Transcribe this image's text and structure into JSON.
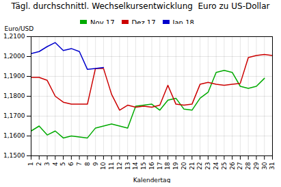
{
  "chart_data": {
    "type": "line",
    "title": "Tägl. durchschnittl. Wechselkursentwicklung  Euro zu US-Dollar",
    "xlabel": "Kalendertag",
    "ylabel": "Euro/USD",
    "x": [
      1,
      2,
      3,
      4,
      5,
      6,
      7,
      8,
      9,
      10,
      11,
      12,
      13,
      14,
      15,
      16,
      17,
      18,
      19,
      20,
      21,
      22,
      23,
      24,
      25,
      26,
      27,
      28,
      29,
      30,
      31
    ],
    "series": [
      {
        "name": "Nov 17",
        "color": "#00aa00",
        "values": [
          1.1625,
          1.165,
          1.1605,
          1.1625,
          1.159,
          1.16,
          1.1595,
          1.159,
          1.164,
          1.165,
          1.166,
          1.165,
          1.164,
          1.175,
          1.1755,
          1.176,
          1.173,
          1.178,
          1.179,
          1.1735,
          1.173,
          1.179,
          1.182,
          1.192,
          1.193,
          1.192,
          1.185,
          1.184,
          1.185,
          1.189,
          null
        ]
      },
      {
        "name": "Dez 17",
        "color": "#cc0000",
        "values": [
          1.1895,
          1.1895,
          1.188,
          1.18,
          1.177,
          1.176,
          1.176,
          1.176,
          1.194,
          1.194,
          1.181,
          1.173,
          1.1755,
          1.1745,
          1.175,
          1.1745,
          1.1755,
          1.1855,
          1.176,
          1.1755,
          1.176,
          1.186,
          1.187,
          1.186,
          1.1855,
          1.186,
          1.1865,
          1.1995,
          1.2005,
          1.201,
          1.2005
        ]
      },
      {
        "name": "Jan 18",
        "color": "#0000cc",
        "values": [
          1.2015,
          1.2025,
          1.205,
          1.207,
          1.203,
          1.204,
          1.2025,
          1.1935,
          1.194,
          1.1945,
          null,
          null,
          null,
          null,
          null,
          null,
          null,
          null,
          null,
          null,
          null,
          null,
          null,
          null,
          null,
          null,
          null,
          null,
          null,
          null,
          null
        ]
      }
    ],
    "xlim": [
      1,
      31
    ],
    "ylim": [
      1.15,
      1.21
    ],
    "xticks": [
      1,
      2,
      3,
      4,
      5,
      6,
      7,
      8,
      9,
      10,
      11,
      12,
      13,
      14,
      15,
      16,
      17,
      18,
      19,
      20,
      21,
      22,
      23,
      24,
      25,
      26,
      27,
      28,
      29,
      30,
      31
    ],
    "yticks": [
      {
        "value": 1.15,
        "label": "1,1500"
      },
      {
        "value": 1.16,
        "label": "1,1600"
      },
      {
        "value": 1.17,
        "label": "1,1700"
      },
      {
        "value": 1.18,
        "label": "1,1800"
      },
      {
        "value": 1.19,
        "label": "1,1900"
      },
      {
        "value": 1.2,
        "label": "1,2000"
      },
      {
        "value": 1.21,
        "label": "1,2100"
      }
    ],
    "grid": true,
    "legend": "top"
  }
}
